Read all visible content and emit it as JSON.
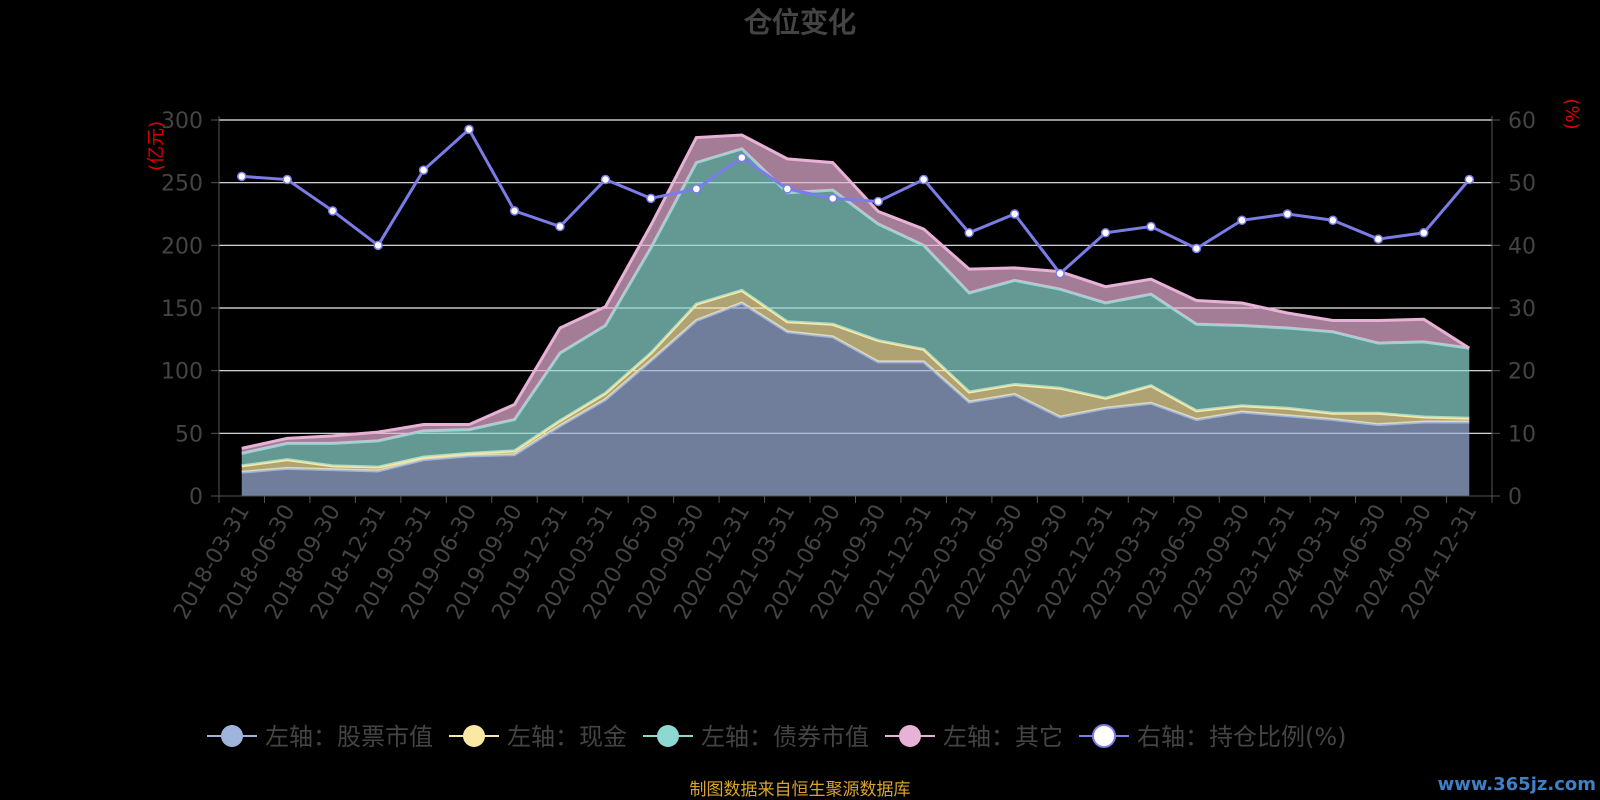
{
  "chart_data": {
    "type": "area",
    "title": "仓位变化",
    "left_axis_unit": "(亿元)",
    "right_axis_unit": "(%)",
    "categories": [
      "2018-03-31",
      "2018-06-30",
      "2018-09-30",
      "2018-12-31",
      "2019-03-31",
      "2019-06-30",
      "2019-09-30",
      "2019-12-31",
      "2020-03-31",
      "2020-06-30",
      "2020-09-30",
      "2020-12-31",
      "2021-03-31",
      "2021-06-30",
      "2021-09-30",
      "2021-12-31",
      "2022-03-31",
      "2022-06-30",
      "2022-09-30",
      "2022-12-31",
      "2023-03-31",
      "2023-06-30",
      "2023-09-30",
      "2023-12-31",
      "2024-03-31",
      "2024-06-30",
      "2024-09-30",
      "2024-12-31"
    ],
    "ylim_left": [
      0,
      300
    ],
    "yticks_left": [
      0,
      50,
      100,
      150,
      200,
      250,
      300
    ],
    "ylim_right": [
      0,
      60
    ],
    "yticks_right": [
      0,
      10,
      20,
      30,
      40,
      50,
      60
    ],
    "stacked": true,
    "grid": true,
    "legend_position": "bottom",
    "series": [
      {
        "name": "左轴：股票市值",
        "axis": "left",
        "type": "area",
        "color": "#9fb4dd",
        "values": [
          19,
          22,
          21,
          20,
          29,
          32,
          33,
          56,
          77,
          108,
          140,
          154,
          131,
          127,
          107,
          107,
          75,
          81,
          63,
          70,
          74,
          61,
          67,
          64,
          61,
          57,
          59,
          59
        ]
      },
      {
        "name": "左轴：现金",
        "axis": "left",
        "type": "area",
        "color": "#fbe8a4",
        "values": [
          5,
          7,
          3,
          3,
          2,
          2,
          3,
          4,
          5,
          6,
          13,
          10,
          8,
          10,
          17,
          10,
          8,
          8,
          23,
          8,
          14,
          7,
          5,
          6,
          5,
          9,
          4,
          3
        ]
      },
      {
        "name": "左轴：债券市值",
        "axis": "left",
        "type": "area",
        "color": "#8ed8d2",
        "values": [
          10,
          13,
          18,
          21,
          21,
          19,
          25,
          54,
          54,
          84,
          113,
          113,
          103,
          107,
          93,
          83,
          79,
          83,
          79,
          76,
          73,
          69,
          64,
          64,
          65,
          56,
          60,
          56
        ]
      },
      {
        "name": "左轴：其它",
        "axis": "left",
        "type": "area",
        "color": "#e8b2d6",
        "values": [
          4,
          4,
          6,
          7,
          5,
          4,
          12,
          20,
          15,
          18,
          20,
          11,
          27,
          22,
          10,
          13,
          19,
          10,
          14,
          13,
          12,
          19,
          18,
          12,
          9,
          18,
          18,
          0
        ]
      },
      {
        "name": "右轴：持仓比例(%)",
        "axis": "right",
        "type": "line",
        "color": "#7b7ce8",
        "values": [
          51,
          50.5,
          45.5,
          40,
          52,
          58.5,
          45.5,
          43,
          50.5,
          47.5,
          49,
          54,
          49,
          47.5,
          47,
          50.5,
          42,
          45,
          35.5,
          42,
          43,
          39.5,
          44,
          45,
          44,
          41,
          42,
          50.5
        ]
      }
    ]
  },
  "source_note": "制图数据来自恒生聚源数据库",
  "watermark": "www.365jz.com"
}
